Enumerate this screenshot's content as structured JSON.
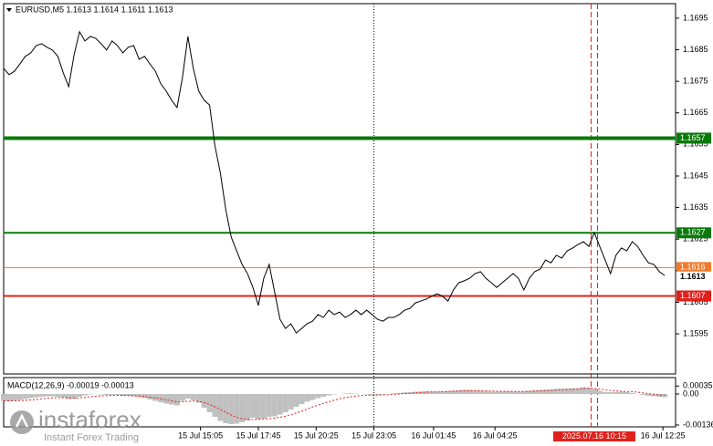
{
  "chart_data": {
    "type": "line",
    "title": "EURUSD,M5  1.1613 1.1614 1.1611 1.1613",
    "color": "#000000",
    "xlim": [
      0,
      372
    ],
    "ylim": [
      1.15823,
      1.16996
    ],
    "yticks": [
      1.1695,
      1.1685,
      1.1675,
      1.1665,
      1.1655,
      1.1645,
      1.1635,
      1.1625,
      1.1615,
      1.1605,
      1.1595
    ],
    "xticks": [
      {
        "value": 109,
        "label": "15 Jul 15:05"
      },
      {
        "value": 141,
        "label": "15 Jul 17:45"
      },
      {
        "value": 173,
        "label": "15 Jul 20:25"
      },
      {
        "value": 205,
        "label": "15 Jul 23:05"
      },
      {
        "value": 238,
        "label": "16 Jul 01:45"
      },
      {
        "value": 272,
        "label": "16 Jul 04:25"
      },
      {
        "value": 365,
        "label": "16 Jul 12:25"
      }
    ],
    "crosshair": {
      "value": 327,
      "label": "2025.07.16 10:15",
      "color": "#e0201a"
    },
    "x": [
      0,
      3,
      6,
      9,
      12,
      15,
      18,
      21,
      24,
      27,
      30,
      33,
      36,
      39,
      42,
      45,
      48,
      51,
      54,
      57,
      60,
      63,
      66,
      69,
      72,
      75,
      78,
      81,
      84,
      87,
      90,
      93,
      96,
      99,
      102,
      105,
      108,
      111,
      114,
      117,
      120,
      123,
      126,
      129,
      132,
      135,
      138,
      141,
      144,
      147,
      150,
      153,
      156,
      159,
      162,
      165,
      168,
      171,
      174,
      177,
      180,
      183,
      186,
      189,
      192,
      195,
      198,
      201,
      204,
      207,
      210,
      213,
      216,
      219,
      222,
      225,
      228,
      231,
      234,
      237,
      240,
      243,
      246,
      249,
      252,
      255,
      258,
      261,
      264,
      267,
      270,
      273,
      276,
      279,
      282,
      285,
      288,
      291,
      294,
      297,
      300,
      303,
      306,
      309,
      312,
      315,
      318,
      321,
      324,
      327,
      330,
      333,
      336,
      339,
      342,
      345,
      348,
      351,
      354,
      357,
      360,
      363,
      366
    ],
    "values": [
      1.16791,
      1.16771,
      1.16782,
      1.16805,
      1.16829,
      1.1684,
      1.16863,
      1.16869,
      1.16858,
      1.16849,
      1.16829,
      1.16777,
      1.16733,
      1.16834,
      1.16907,
      1.16878,
      1.16892,
      1.16886,
      1.16869,
      1.16849,
      1.16878,
      1.16863,
      1.1684,
      1.16858,
      1.16863,
      1.1682,
      1.16829,
      1.16805,
      1.16782,
      1.16742,
      1.16719,
      1.1669,
      1.16667,
      1.16762,
      1.16892,
      1.16791,
      1.16719,
      1.1669,
      1.16675,
      1.16545,
      1.16459,
      1.16343,
      1.16256,
      1.16213,
      1.1617,
      1.16141,
      1.16097,
      1.1604,
      1.16126,
      1.1617,
      1.16083,
      1.15996,
      1.15967,
      1.15982,
      1.15953,
      1.15967,
      1.15982,
      1.1599,
      1.16011,
      1.16002,
      1.16025,
      1.16011,
      1.16019,
      1.16002,
      1.16011,
      1.16025,
      1.16011,
      1.16025,
      1.16011,
      1.15996,
      1.1599,
      1.16002,
      1.16002,
      1.16011,
      1.16025,
      1.16031,
      1.16048,
      1.16054,
      1.1606,
      1.16069,
      1.16077,
      1.16069,
      1.16054,
      1.16089,
      1.16112,
      1.16118,
      1.16126,
      1.16141,
      1.16147,
      1.16126,
      1.16112,
      1.16097,
      1.16112,
      1.16126,
      1.16141,
      1.16126,
      1.16089,
      1.16126,
      1.16147,
      1.16155,
      1.16184,
      1.16175,
      1.16199,
      1.1619,
      1.16213,
      1.16222,
      1.16233,
      1.16242,
      1.16227,
      1.16271,
      1.16227,
      1.16184,
      1.16141,
      1.16199,
      1.16222,
      1.16213,
      1.16242,
      1.16227,
      1.16199,
      1.16175,
      1.1617,
      1.16147,
      1.16135
    ],
    "levels": [
      {
        "value": 1.1657,
        "color": "#0a7a0a"
      },
      {
        "value": 1.1627,
        "color": "#0a7a0a"
      },
      {
        "value": 1.1616,
        "color": "#f07a2a"
      },
      {
        "value": 1.1607,
        "color": "#e0201a"
      }
    ],
    "last_price": 1.1613,
    "macd": {
      "label": "MACD(12,26,9) -0.00019 -0.00013",
      "ylim": [
        -0.00144,
        0.00072
      ],
      "yticks": [
        0.00035,
        {
          "value": 0,
          "label": "0.00"
        },
        -0.00136
      ],
      "histogram_color": "#c0c0c0",
      "signal_color": "#e0201a",
      "histogram": [
        -0.0003,
        -0.00032,
        -0.0003,
        -0.00026,
        -0.00022,
        -0.00018,
        -0.00015,
        -0.00012,
        -0.0001,
        -0.0001,
        -0.00012,
        -0.00016,
        -0.00022,
        -0.0002,
        -0.00012,
        -6e-05,
        -2e-05,
        0,
        -2e-05,
        -4e-05,
        -4e-05,
        -5e-05,
        -8e-05,
        -8e-05,
        -0.0001,
        -0.00014,
        -0.00018,
        -0.00024,
        -0.0003,
        -0.00036,
        -0.00042,
        -0.00046,
        -0.0005,
        -0.0003,
        -0.0002,
        -0.00028,
        -0.00038,
        -0.0006,
        -0.0008,
        -0.001,
        -0.00118,
        -0.00128,
        -0.00132,
        -0.0013,
        -0.00124,
        -0.00116,
        -0.00104,
        -0.0011,
        -0.00108,
        -0.001,
        -0.00098,
        -0.0009,
        -0.0008,
        -0.00068,
        -0.00056,
        -0.00044,
        -0.00034,
        -0.00026,
        -0.00018,
        -0.00012,
        -6e-05,
        -2e-05,
        0,
        2e-05,
        3e-05,
        2e-05,
        0,
        -2e-05,
        -4e-05,
        -4e-05,
        -2e-05,
        0,
        3e-05,
        5e-05,
        7e-05,
        8e-05,
        0.0001,
        0.00011,
        0.00012,
        0.00011,
        0.0001,
        0.00011,
        0.00013,
        0.00015,
        0.00017,
        0.00018,
        0.00018,
        0.00016,
        0.00014,
        0.00012,
        0.0001,
        0.0001,
        0.00011,
        0.00012,
        0.0001,
        0.0001,
        0.00012,
        0.00014,
        0.00016,
        0.00018,
        0.00019,
        0.0002,
        0.00022,
        0.00023,
        0.00024,
        0.00025,
        0.00026,
        0.0003,
        0.00028,
        0.00022,
        0.00014,
        8e-05,
        8e-05,
        9e-05,
        0.0001,
        8e-05,
        4e-05,
        0,
        -4e-05,
        -8e-05,
        -0.0001,
        -0.00012,
        -0.00014
      ],
      "signal": [
        -0.0003,
        -0.0003,
        -0.0003,
        -0.00029,
        -0.00028,
        -0.00026,
        -0.00024,
        -0.00021,
        -0.00019,
        -0.00017,
        -0.00016,
        -0.00016,
        -0.00017,
        -0.00018,
        -0.00017,
        -0.00015,
        -0.00012,
        -0.0001,
        -8e-05,
        -7e-05,
        -6e-05,
        -6e-05,
        -6e-05,
        -7e-05,
        -8e-05,
        -9e-05,
        -0.00011,
        -0.00014,
        -0.00017,
        -0.00021,
        -0.00025,
        -0.0003,
        -0.00034,
        -0.00034,
        -0.00032,
        -0.00031,
        -0.00032,
        -0.00038,
        -0.00046,
        -0.00056,
        -0.00068,
        -0.0008,
        -0.00092,
        -0.00102,
        -0.00108,
        -0.00112,
        -0.00112,
        -0.00111,
        -0.0011,
        -0.00108,
        -0.00106,
        -0.00102,
        -0.00097,
        -0.00091,
        -0.00083,
        -0.00075,
        -0.00066,
        -0.00057,
        -0.00049,
        -0.00041,
        -0.00034,
        -0.00027,
        -0.00021,
        -0.00016,
        -0.00012,
        -9e-05,
        -7e-05,
        -6e-05,
        -5e-05,
        -5e-05,
        -4e-05,
        -3e-05,
        -2e-05,
        0,
        2e-05,
        3e-05,
        5e-05,
        6e-05,
        8e-05,
        9e-05,
        9e-05,
        0.0001,
        0.00011,
        0.00012,
        0.00013,
        0.00014,
        0.00015,
        0.00015,
        0.00015,
        0.00014,
        0.00013,
        0.00012,
        0.00012,
        0.00012,
        0.00011,
        0.00011,
        0.00011,
        0.00012,
        0.00013,
        0.00014,
        0.00015,
        0.00016,
        0.00018,
        0.00019,
        0.0002,
        0.00021,
        0.00022,
        0.00024,
        0.00025,
        0.00024,
        0.00022,
        0.00019,
        0.00016,
        0.00014,
        0.00012,
        0.00011,
        0.0001,
        8e-05,
        5e-05,
        2e-05,
        -1e-05,
        -4e-05,
        -7e-05
      ]
    },
    "watermark": {
      "name": "instaforex",
      "tagline": "Instant Forex Trading"
    }
  }
}
